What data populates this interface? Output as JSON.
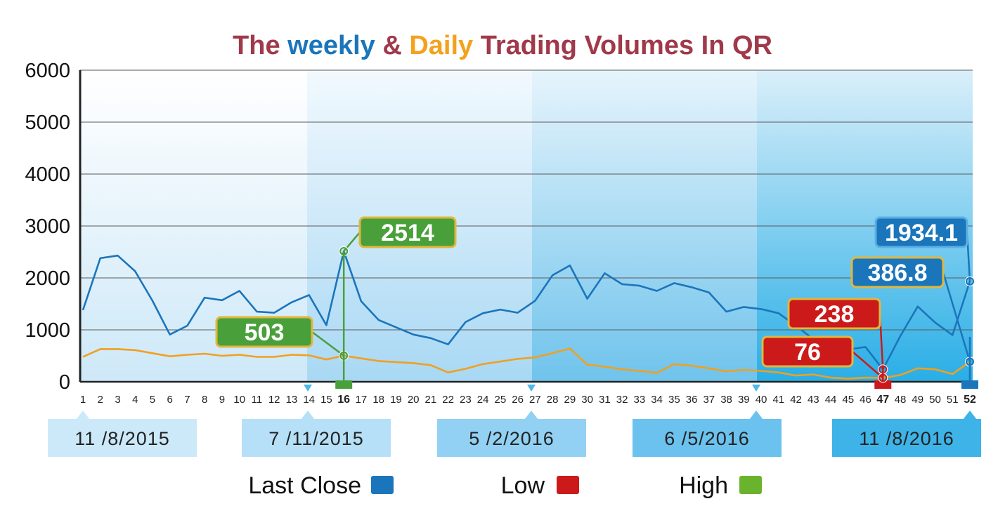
{
  "title": {
    "parts": [
      {
        "text": "The ",
        "color": "#a0394a"
      },
      {
        "text": "weekly",
        "color": "#1b75bb"
      },
      {
        "text": " & ",
        "color": "#a0394a"
      },
      {
        "text": "Daily",
        "color": "#f4a11d"
      },
      {
        "text": " Trading Volumes In QR",
        "color": "#a0394a"
      }
    ]
  },
  "colors": {
    "last_close": "#1b75bb",
    "low": "#cc1a1a",
    "high": "#49a03a",
    "daily": "#f0a020",
    "axis": "#222222",
    "grid": "#5a5a5a"
  },
  "chart_data": {
    "type": "line",
    "title": "The weekly & Daily Trading Volumes In QR",
    "ylim": [
      0,
      6000
    ],
    "yticks": [
      0,
      1000,
      2000,
      3000,
      4000,
      5000,
      6000
    ],
    "x": [
      1,
      2,
      3,
      4,
      5,
      6,
      7,
      8,
      9,
      10,
      11,
      12,
      13,
      14,
      15,
      16,
      17,
      18,
      19,
      20,
      21,
      22,
      23,
      24,
      25,
      26,
      27,
      28,
      29,
      30,
      31,
      32,
      33,
      34,
      35,
      36,
      37,
      38,
      39,
      40,
      41,
      42,
      43,
      44,
      45,
      46,
      47,
      48,
      49,
      50,
      51,
      52
    ],
    "highlight_ticks": [
      {
        "x": 16,
        "color": "#49a03a"
      },
      {
        "x": 47,
        "color": "#cc1a1a"
      },
      {
        "x": 52,
        "color": "#1b75bb"
      }
    ],
    "series": [
      {
        "key": "weekly",
        "color": "#1b75bb",
        "values": [
          1380,
          2380,
          2430,
          2130,
          1560,
          910,
          1080,
          1620,
          1570,
          1750,
          1350,
          1330,
          1530,
          1670,
          1090,
          2514,
          1550,
          1190,
          1050,
          910,
          840,
          720,
          1150,
          1320,
          1390,
          1330,
          1560,
          2050,
          2240,
          1600,
          2090,
          1880,
          1850,
          1750,
          1900,
          1820,
          1720,
          1350,
          1440,
          1400,
          1320,
          1080,
          820,
          640,
          620,
          670,
          238,
          880,
          1450,
          1140,
          900,
          1934.1
        ]
      },
      {
        "key": "daily",
        "color": "#f0a020",
        "values": [
          480,
          630,
          630,
          610,
          550,
          490,
          520,
          540,
          500,
          520,
          480,
          480,
          520,
          510,
          430,
          503,
          450,
          400,
          380,
          360,
          320,
          180,
          250,
          340,
          390,
          440,
          470,
          550,
          640,
          330,
          290,
          240,
          210,
          170,
          340,
          310,
          260,
          200,
          230,
          210,
          180,
          120,
          140,
          80,
          60,
          80,
          76,
          130,
          260,
          240,
          150,
          386.8
        ]
      }
    ],
    "annotations": [
      {
        "label": "2514",
        "x": 16,
        "y": 2514,
        "color": "#49a03a"
      },
      {
        "label": "503",
        "x": 16,
        "y": 503,
        "color": "#49a03a"
      },
      {
        "label": "238",
        "x": 47,
        "y": 238,
        "color": "#cc1a1a"
      },
      {
        "label": "76",
        "x": 47,
        "y": 76,
        "color": "#cc1a1a"
      },
      {
        "label": "1934.1",
        "x": 52,
        "y": 1934.1,
        "color": "#1b75bb"
      },
      {
        "label": "386.8",
        "x": 52,
        "y": 386.8,
        "color": "#1b75bb"
      }
    ],
    "date_markers": [
      {
        "x": 1,
        "label": "11 /8/2015"
      },
      {
        "x": 14,
        "label": "7 /11/2015"
      },
      {
        "x": 27,
        "label": "5 /2/2016"
      },
      {
        "x": 40,
        "label": "6 /5/2016"
      },
      {
        "x": 52,
        "label": "11 /8/2016"
      }
    ],
    "legend": [
      {
        "label": "Last Close",
        "color": "#1b75bb"
      },
      {
        "label": "Low",
        "color": "#cc1a1a"
      },
      {
        "label": "High",
        "color": "#6ab42d"
      }
    ]
  }
}
